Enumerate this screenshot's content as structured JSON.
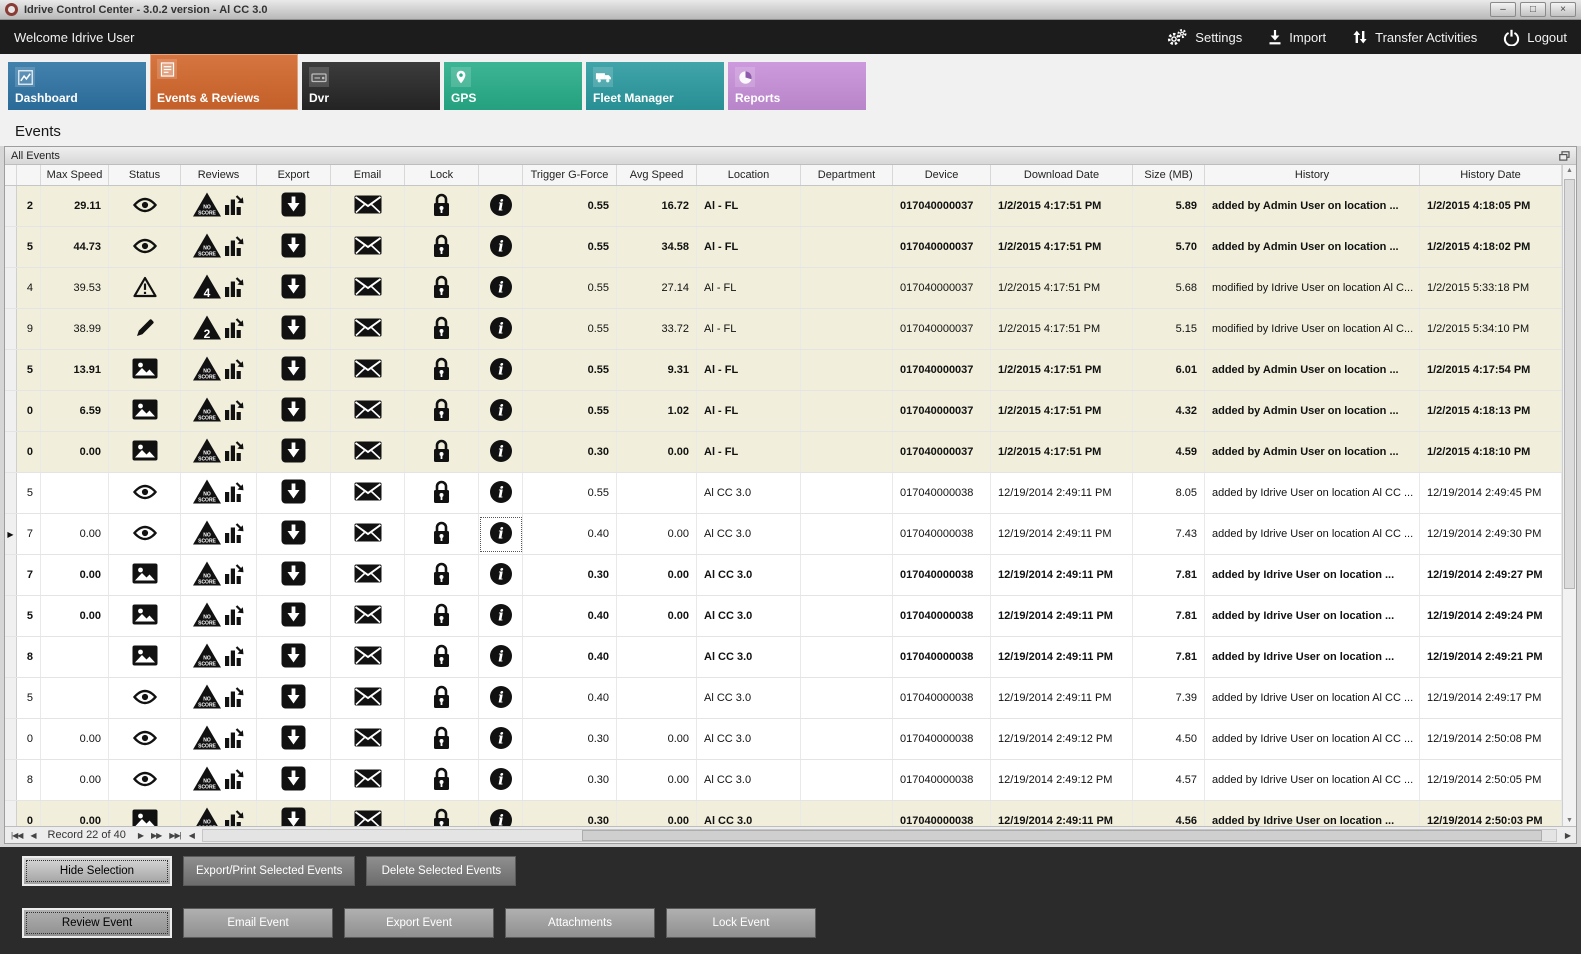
{
  "window": {
    "title": "Idrive Control Center - 3.0.2 version - Al CC 3.0"
  },
  "topbar": {
    "welcome": "Welcome Idrive User",
    "actions": [
      {
        "label": "Settings"
      },
      {
        "label": "Import"
      },
      {
        "label": "Transfer Activities"
      },
      {
        "label": "Logout"
      }
    ]
  },
  "tabs": [
    {
      "label": "Dashboard",
      "color": "#2e73a4",
      "active": false
    },
    {
      "label": "Events & Reviews",
      "color": "#d2662b",
      "active": true
    },
    {
      "label": "Dvr",
      "color": "#262626",
      "active": false
    },
    {
      "label": "GPS",
      "color": "#27ad89",
      "active": false
    },
    {
      "label": "Fleet Manager",
      "color": "#2b9aa0",
      "active": false
    },
    {
      "label": "Reports",
      "color": "#c78fd9",
      "active": false
    }
  ],
  "page": {
    "title": "Events"
  },
  "panel": {
    "title": "All Events"
  },
  "table": {
    "columns": [
      "",
      "Max Speed",
      "Status",
      "Reviews",
      "Export",
      "Email",
      "Lock",
      "",
      "Trigger G-Force",
      "Avg Speed",
      "Location",
      "Department",
      "Device",
      "Download Date",
      "Size (MB)",
      "History",
      "History Date"
    ],
    "rows": [
      {
        "id": "2",
        "max_speed": "29.11",
        "status": "eye",
        "review": "NO SCORE",
        "trigger": "0.55",
        "avg_speed": "16.72",
        "location": "Al - FL",
        "department": "",
        "device": "017040000037",
        "download_date": "1/2/2015 4:17:51 PM",
        "size": "5.89",
        "history": "added by Admin User on location ...",
        "history_date": "1/2/2015 4:18:05 PM",
        "bold": true,
        "beige": true,
        "selected": false
      },
      {
        "id": "5",
        "max_speed": "44.73",
        "status": "eye",
        "review": "NO SCORE",
        "trigger": "0.55",
        "avg_speed": "34.58",
        "location": "Al - FL",
        "department": "",
        "device": "017040000037",
        "download_date": "1/2/2015 4:17:51 PM",
        "size": "5.70",
        "history": "added by Admin User on location ...",
        "history_date": "1/2/2015 4:18:02 PM",
        "bold": true,
        "beige": true,
        "selected": false
      },
      {
        "id": "4",
        "max_speed": "39.53",
        "status": "warning",
        "review": "4",
        "trigger": "0.55",
        "avg_speed": "27.14",
        "location": "Al - FL",
        "department": "",
        "device": "017040000037",
        "download_date": "1/2/2015 4:17:51 PM",
        "size": "5.68",
        "history": "modified by Idrive User on location Al C...",
        "history_date": "1/2/2015 5:33:18 PM",
        "bold": false,
        "beige": true,
        "selected": false
      },
      {
        "id": "9",
        "max_speed": "38.99",
        "status": "pencil",
        "review": "2",
        "trigger": "0.55",
        "avg_speed": "33.72",
        "location": "Al - FL",
        "department": "",
        "device": "017040000037",
        "download_date": "1/2/2015 4:17:51 PM",
        "size": "5.15",
        "history": "modified by Idrive User on location Al C...",
        "history_date": "1/2/2015 5:34:10 PM",
        "bold": false,
        "beige": true,
        "selected": false
      },
      {
        "id": "5",
        "max_speed": "13.91",
        "status": "photo",
        "review": "NO SCORE",
        "trigger": "0.55",
        "avg_speed": "9.31",
        "location": "Al - FL",
        "department": "",
        "device": "017040000037",
        "download_date": "1/2/2015 4:17:51 PM",
        "size": "6.01",
        "history": "added by Admin User on location ...",
        "history_date": "1/2/2015 4:17:54 PM",
        "bold": true,
        "beige": true,
        "selected": false
      },
      {
        "id": "0",
        "max_speed": "6.59",
        "status": "photo",
        "review": "NO SCORE",
        "trigger": "0.55",
        "avg_speed": "1.02",
        "location": "Al - FL",
        "department": "",
        "device": "017040000037",
        "download_date": "1/2/2015 4:17:51 PM",
        "size": "4.32",
        "history": "added by Admin User on location ...",
        "history_date": "1/2/2015 4:18:13 PM",
        "bold": true,
        "beige": true,
        "selected": false
      },
      {
        "id": "0",
        "max_speed": "0.00",
        "status": "photo",
        "review": "NO SCORE",
        "trigger": "0.30",
        "avg_speed": "0.00",
        "location": "Al - FL",
        "department": "",
        "device": "017040000037",
        "download_date": "1/2/2015 4:17:51 PM",
        "size": "4.59",
        "history": "added by Admin User on location ...",
        "history_date": "1/2/2015 4:18:10 PM",
        "bold": true,
        "beige": true,
        "selected": false
      },
      {
        "id": "5",
        "max_speed": "",
        "status": "eye",
        "review": "NO SCORE",
        "trigger": "0.55",
        "avg_speed": "",
        "location": "Al CC 3.0",
        "department": "",
        "device": "017040000038",
        "download_date": "12/19/2014 2:49:11 PM",
        "size": "8.05",
        "history": "added by Idrive User on location Al CC ...",
        "history_date": "12/19/2014 2:49:45 PM",
        "bold": false,
        "beige": false,
        "selected": false
      },
      {
        "id": "7",
        "max_speed": "0.00",
        "status": "eye",
        "review": "NO SCORE",
        "trigger": "0.40",
        "avg_speed": "0.00",
        "location": "Al CC 3.0",
        "department": "",
        "device": "017040000038",
        "download_date": "12/19/2014 2:49:11 PM",
        "size": "7.43",
        "history": "added by Idrive User on location Al CC ...",
        "history_date": "12/19/2014 2:49:30 PM",
        "bold": false,
        "beige": false,
        "selected": true
      },
      {
        "id": "7",
        "max_speed": "0.00",
        "status": "photo",
        "review": "NO SCORE",
        "trigger": "0.30",
        "avg_speed": "0.00",
        "location": "Al CC 3.0",
        "department": "",
        "device": "017040000038",
        "download_date": "12/19/2014 2:49:11 PM",
        "size": "7.81",
        "history": "added by Idrive User on location ...",
        "history_date": "12/19/2014 2:49:27 PM",
        "bold": true,
        "beige": false,
        "selected": false
      },
      {
        "id": "5",
        "max_speed": "0.00",
        "status": "photo",
        "review": "NO SCORE",
        "trigger": "0.40",
        "avg_speed": "0.00",
        "location": "Al CC 3.0",
        "department": "",
        "device": "017040000038",
        "download_date": "12/19/2014 2:49:11 PM",
        "size": "7.81",
        "history": "added by Idrive User on location ...",
        "history_date": "12/19/2014 2:49:24 PM",
        "bold": true,
        "beige": false,
        "selected": false
      },
      {
        "id": "8",
        "max_speed": "",
        "status": "photo",
        "review": "NO SCORE",
        "trigger": "0.40",
        "avg_speed": "",
        "location": "Al CC 3.0",
        "department": "",
        "device": "017040000038",
        "download_date": "12/19/2014 2:49:11 PM",
        "size": "7.81",
        "history": "added by Idrive User on location ...",
        "history_date": "12/19/2014 2:49:21 PM",
        "bold": true,
        "beige": false,
        "selected": false
      },
      {
        "id": "5",
        "max_speed": "",
        "status": "eye",
        "review": "NO SCORE",
        "trigger": "0.40",
        "avg_speed": "",
        "location": "Al CC 3.0",
        "department": "",
        "device": "017040000038",
        "download_date": "12/19/2014 2:49:11 PM",
        "size": "7.39",
        "history": "added by Idrive User on location Al CC ...",
        "history_date": "12/19/2014 2:49:17 PM",
        "bold": false,
        "beige": false,
        "selected": false
      },
      {
        "id": "0",
        "max_speed": "0.00",
        "status": "eye",
        "review": "NO SCORE",
        "trigger": "0.30",
        "avg_speed": "0.00",
        "location": "Al CC 3.0",
        "department": "",
        "device": "017040000038",
        "download_date": "12/19/2014 2:49:12 PM",
        "size": "4.50",
        "history": "added by Idrive User on location Al CC ...",
        "history_date": "12/19/2014 2:50:08 PM",
        "bold": false,
        "beige": false,
        "selected": false
      },
      {
        "id": "8",
        "max_speed": "0.00",
        "status": "eye",
        "review": "NO SCORE",
        "trigger": "0.30",
        "avg_speed": "0.00",
        "location": "Al CC 3.0",
        "department": "",
        "device": "017040000038",
        "download_date": "12/19/2014 2:49:12 PM",
        "size": "4.57",
        "history": "added by Idrive User on location Al CC ...",
        "history_date": "12/19/2014 2:50:05 PM",
        "bold": false,
        "beige": false,
        "selected": false
      },
      {
        "id": "0",
        "max_speed": "0.00",
        "status": "photo",
        "review": "NO SCORE",
        "trigger": "0.30",
        "avg_speed": "0.00",
        "location": "Al CC 3.0",
        "department": "",
        "device": "017040000038",
        "download_date": "12/19/2014 2:49:11 PM",
        "size": "4.56",
        "history": "added by Idrive User on location ...",
        "history_date": "12/19/2014 2:50:03 PM",
        "bold": true,
        "beige": true,
        "selected": false
      }
    ]
  },
  "record_nav": {
    "label": "Record 22 of 40"
  },
  "footer": {
    "selection_buttons": [
      {
        "label": "Hide Selection",
        "focused": true
      },
      {
        "label": "Export/Print Selected Events",
        "focused": false
      },
      {
        "label": "Delete Selected  Events",
        "focused": false
      }
    ],
    "event_buttons": [
      {
        "label": "Review Event",
        "focused": true
      },
      {
        "label": "Email Event",
        "focused": false
      },
      {
        "label": "Export Event",
        "focused": false
      },
      {
        "label": "Attachments",
        "focused": false
      },
      {
        "label": "Lock Event",
        "focused": false
      }
    ]
  }
}
